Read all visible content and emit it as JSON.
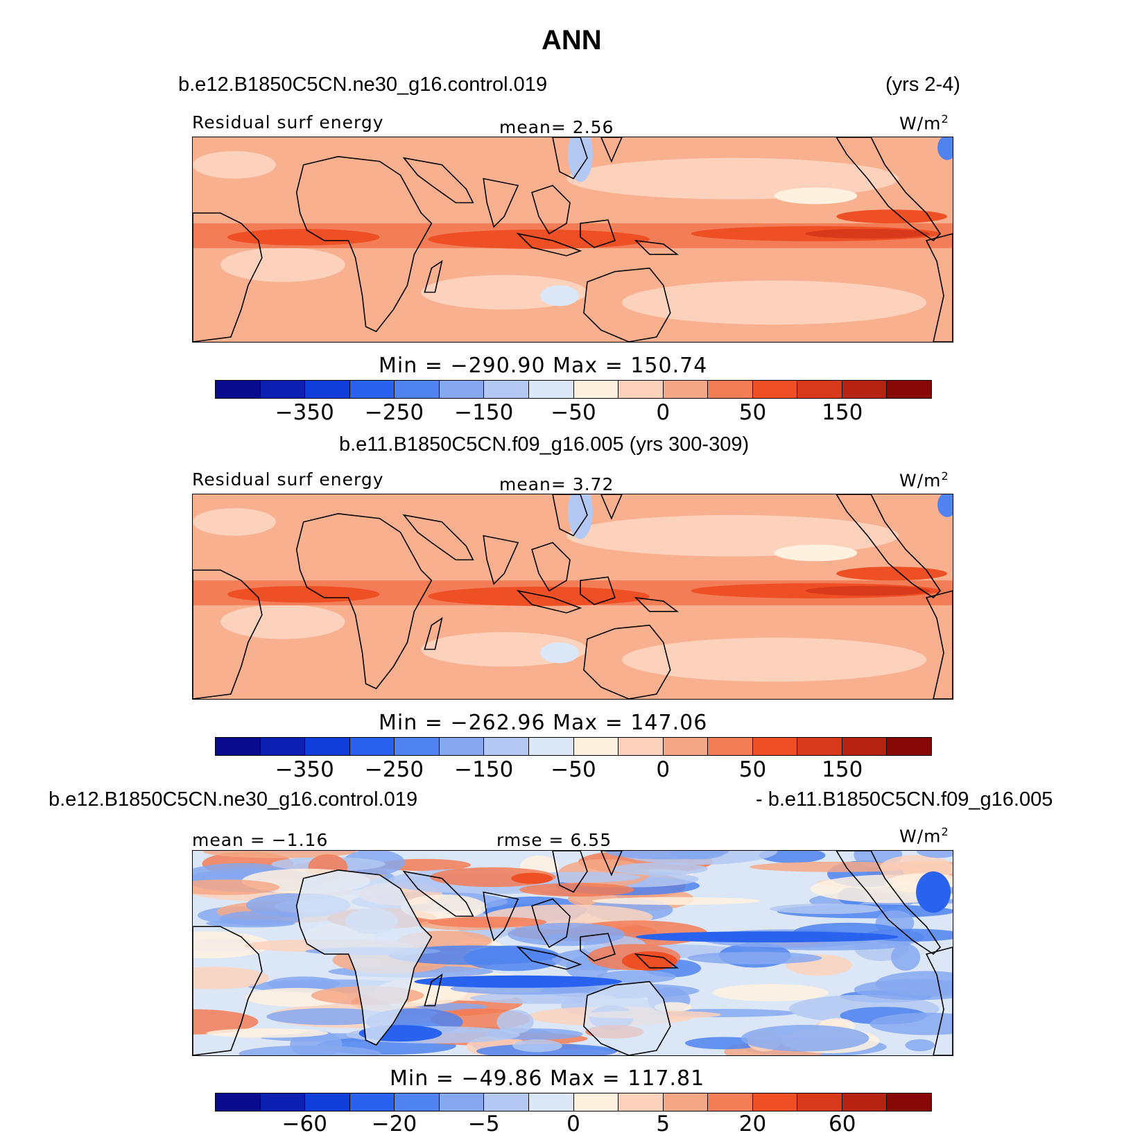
{
  "figure": {
    "title": "ANN"
  },
  "colors": {
    "sequential_16": [
      "#0a0a8f",
      "#0b1fb0",
      "#0f3fd8",
      "#2a62f0",
      "#4f83f0",
      "#86a8f0",
      "#b3c8f2",
      "#dbe7f7",
      "#fff1e0",
      "#fdd2bd",
      "#f6a886",
      "#f37d57",
      "#ee4f24",
      "#d8391b",
      "#b62312",
      "#880808"
    ]
  },
  "panels": [
    {
      "header_left": "b.e12.B1850C5CN.ne30_g16.control.019",
      "header_right": "(yrs 2-4)",
      "variable": "Residual surf energy",
      "mean_text": "mean=   2.56",
      "units": "W/m",
      "units_sup": "2",
      "min_max": "Min = −290.90 Max = 150.74",
      "colorbar_ticks": [
        "−350",
        "−250",
        "−150",
        "−50",
        "0",
        "50",
        "150"
      ],
      "style": "model"
    },
    {
      "header_center": "b.e11.B1850C5CN.f09_g16.005 (yrs 300-309)",
      "variable": "Residual surf energy",
      "mean_text": "mean=   3.72",
      "units": "W/m",
      "units_sup": "2",
      "min_max": "Min = −262.96 Max = 147.06",
      "colorbar_ticks": [
        "−350",
        "−250",
        "−150",
        "−50",
        "0",
        "50",
        "150"
      ],
      "style": "model"
    },
    {
      "header_left": "b.e12.B1850C5CN.ne30_g16.control.019",
      "header_right": "- b.e11.B1850C5CN.f09_g16.005",
      "mean_text": "mean =  −1.16",
      "rmse_text": "rmse =   6.55",
      "units": "W/m",
      "units_sup": "2",
      "min_max": "Min = −49.86 Max = 117.81",
      "colorbar_ticks": [
        "−60",
        "−20",
        "−5",
        "0",
        "5",
        "20",
        "60"
      ],
      "style": "diff"
    }
  ]
}
